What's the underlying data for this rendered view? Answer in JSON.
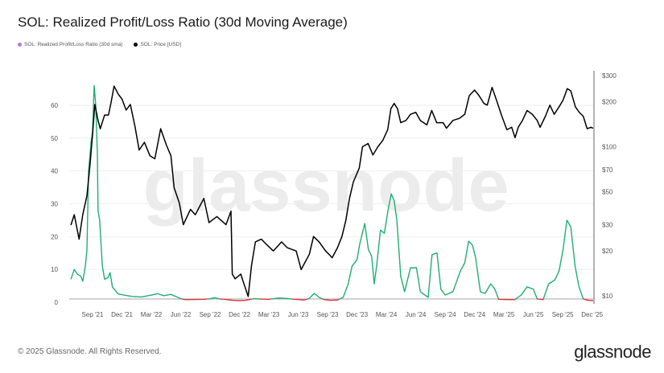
{
  "title": "SOL: Realized Profit/Loss Ratio (30d Moving Average)",
  "legend": [
    {
      "label": "SOL: Realized Profit/Loss Ratio (30d sma)",
      "color": "#a87fd6"
    },
    {
      "label": "SOL: Price [USD]",
      "color": "#000000"
    }
  ],
  "watermark": "glassnode",
  "footer": {
    "copyright": "© 2025 Glassnode. All Rights Reserved.",
    "logo": "glassnode"
  },
  "chart_data": {
    "type": "line",
    "title": "SOL: Realized Profit/Loss Ratio (30d Moving Average)",
    "grid": true,
    "legend_position": "top-left",
    "x_ticks": [
      "Sep '21",
      "Dec '21",
      "Mar '22",
      "Jun '22",
      "Sep '22",
      "Dec '22",
      "Mar '23",
      "Jun '23",
      "Sep '23",
      "Dec '23",
      "Mar '24",
      "Jun '24",
      "Sep '24",
      "Dec '24",
      "Mar '25",
      "Jun '25",
      "Sep '25",
      "Dec '25"
    ],
    "x_range": [
      "2021-06-18",
      "2025-12-07"
    ],
    "y_left": {
      "ticks": [
        0,
        10,
        20,
        30,
        40,
        50,
        60
      ],
      "range": [
        0,
        69
      ],
      "scale": "linear"
    },
    "y_right": {
      "ticks": [
        "$10",
        "$20",
        "$30",
        "$50",
        "$70",
        "$100",
        "$200",
        "$300"
      ],
      "tick_values": [
        10,
        20,
        30,
        50,
        70,
        100,
        200,
        300
      ],
      "range": [
        9.5,
        300
      ],
      "scale": "log"
    },
    "colors": {
      "ratio_above_1": "#1fae74",
      "ratio_below_1": "#d9343a",
      "price": "#000000",
      "reference_line": "#999999"
    },
    "reference_line_value": 1,
    "series": [
      {
        "name": "SOL: Realized Profit/Loss Ratio (30d sma)",
        "axis": "left",
        "points": [
          [
            "2021-06-25",
            7
          ],
          [
            "2021-07-05",
            10
          ],
          [
            "2021-07-15",
            8.5
          ],
          [
            "2021-07-25",
            8
          ],
          [
            "2021-08-01",
            6.4
          ],
          [
            "2021-08-09",
            11
          ],
          [
            "2021-08-14",
            16
          ],
          [
            "2021-08-19",
            40
          ],
          [
            "2021-08-27",
            49
          ],
          [
            "2021-09-01",
            52
          ],
          [
            "2021-09-06",
            66
          ],
          [
            "2021-09-11",
            60
          ],
          [
            "2021-09-16",
            45
          ],
          [
            "2021-09-18",
            28
          ],
          [
            "2021-09-23",
            25
          ],
          [
            "2021-10-01",
            11
          ],
          [
            "2021-10-08",
            7
          ],
          [
            "2021-10-18",
            7.5
          ],
          [
            "2021-10-25",
            9
          ],
          [
            "2021-11-02",
            4.6
          ],
          [
            "2021-11-20",
            2.5
          ],
          [
            "2021-12-01",
            2.3
          ],
          [
            "2022-01-01",
            1.8
          ],
          [
            "2022-02-01",
            1.6
          ],
          [
            "2022-03-01",
            2.2
          ],
          [
            "2022-03-20",
            2.6
          ],
          [
            "2022-04-10",
            2.0
          ],
          [
            "2022-05-01",
            2.4
          ],
          [
            "2022-05-20",
            1.6
          ],
          [
            "2022-06-01",
            1.1
          ],
          [
            "2022-06-15",
            0.8
          ],
          [
            "2022-07-15",
            0.85
          ],
          [
            "2022-08-15",
            0.9
          ],
          [
            "2022-09-01",
            1.1
          ],
          [
            "2022-09-15",
            1.4
          ],
          [
            "2022-10-01",
            1.0
          ],
          [
            "2022-10-15",
            0.9
          ],
          [
            "2022-11-10",
            0.6
          ],
          [
            "2022-12-01",
            0.5
          ],
          [
            "2022-12-20",
            0.6
          ],
          [
            "2023-01-15",
            1.1
          ],
          [
            "2023-02-01",
            1.0
          ],
          [
            "2023-03-01",
            0.9
          ],
          [
            "2023-04-01",
            1.3
          ],
          [
            "2023-05-01",
            1.1
          ],
          [
            "2023-06-01",
            0.8
          ],
          [
            "2023-06-20",
            0.7
          ],
          [
            "2023-07-05",
            1.2
          ],
          [
            "2023-07-20",
            2.7
          ],
          [
            "2023-08-05",
            1.5
          ],
          [
            "2023-08-20",
            0.8
          ],
          [
            "2023-09-10",
            0.6
          ],
          [
            "2023-10-01",
            0.7
          ],
          [
            "2023-10-19",
            1.5
          ],
          [
            "2023-11-04",
            5.6
          ],
          [
            "2023-11-16",
            11
          ],
          [
            "2023-12-01",
            13
          ],
          [
            "2023-12-10",
            18
          ],
          [
            "2023-12-25",
            24
          ],
          [
            "2024-01-06",
            16
          ],
          [
            "2024-01-16",
            14
          ],
          [
            "2024-01-24",
            5.6
          ],
          [
            "2024-02-01",
            11
          ],
          [
            "2024-02-13",
            22
          ],
          [
            "2024-02-25",
            21
          ],
          [
            "2024-03-06",
            28
          ],
          [
            "2024-03-16",
            33
          ],
          [
            "2024-03-25",
            31
          ],
          [
            "2024-04-03",
            25
          ],
          [
            "2024-04-15",
            8
          ],
          [
            "2024-04-27",
            3.2
          ],
          [
            "2024-05-15",
            10.5
          ],
          [
            "2024-06-03",
            10.5
          ],
          [
            "2024-06-15",
            3.2
          ],
          [
            "2024-07-09",
            1.5
          ],
          [
            "2024-07-21",
            14.5
          ],
          [
            "2024-08-06",
            15
          ],
          [
            "2024-08-18",
            4
          ],
          [
            "2024-09-01",
            2.2
          ],
          [
            "2024-09-25",
            3.2
          ],
          [
            "2024-10-18",
            9.6
          ],
          [
            "2024-11-01",
            12
          ],
          [
            "2024-11-13",
            18.6
          ],
          [
            "2024-11-25",
            17.4
          ],
          [
            "2024-12-04",
            13.7
          ],
          [
            "2024-12-19",
            3.2
          ],
          [
            "2025-01-03",
            2.7
          ],
          [
            "2025-01-21",
            5.6
          ],
          [
            "2025-02-03",
            4
          ],
          [
            "2025-02-15",
            0.9
          ],
          [
            "2025-03-10",
            0.8
          ],
          [
            "2025-04-04",
            0.8
          ],
          [
            "2025-04-24",
            2.2
          ],
          [
            "2025-05-12",
            4.7
          ],
          [
            "2025-06-01",
            4
          ],
          [
            "2025-06-13",
            1.0
          ],
          [
            "2025-07-01",
            0.8
          ],
          [
            "2025-07-18",
            5.6
          ],
          [
            "2025-08-07",
            6.8
          ],
          [
            "2025-08-20",
            9.5
          ],
          [
            "2025-09-02",
            16
          ],
          [
            "2025-09-14",
            25
          ],
          [
            "2025-09-26",
            23
          ],
          [
            "2025-10-09",
            11
          ],
          [
            "2025-10-21",
            4.7
          ],
          [
            "2025-11-04",
            1.0
          ],
          [
            "2025-11-19",
            0.6
          ],
          [
            "2025-12-04",
            0.5
          ]
        ]
      },
      {
        "name": "SOL: Price [USD]",
        "axis": "right",
        "points": [
          [
            "2021-06-25",
            29.8
          ],
          [
            "2021-07-05",
            35
          ],
          [
            "2021-07-20",
            24
          ],
          [
            "2021-08-01",
            35
          ],
          [
            "2021-08-14",
            47
          ],
          [
            "2021-08-24",
            78
          ],
          [
            "2021-09-01",
            121
          ],
          [
            "2021-09-08",
            192
          ],
          [
            "2021-09-18",
            150
          ],
          [
            "2021-09-25",
            132
          ],
          [
            "2021-10-08",
            163
          ],
          [
            "2021-10-20",
            163
          ],
          [
            "2021-10-28",
            198
          ],
          [
            "2021-11-07",
            255
          ],
          [
            "2021-11-20",
            225
          ],
          [
            "2021-12-01",
            209
          ],
          [
            "2021-12-14",
            176
          ],
          [
            "2021-12-27",
            192
          ],
          [
            "2022-01-11",
            137
          ],
          [
            "2022-01-24",
            95
          ],
          [
            "2022-02-10",
            107
          ],
          [
            "2022-02-27",
            87
          ],
          [
            "2022-03-12",
            83
          ],
          [
            "2022-03-30",
            132
          ],
          [
            "2022-04-17",
            103
          ],
          [
            "2022-05-01",
            87
          ],
          [
            "2022-05-11",
            53
          ],
          [
            "2022-05-27",
            42
          ],
          [
            "2022-06-09",
            30
          ],
          [
            "2022-07-01",
            38
          ],
          [
            "2022-07-16",
            35
          ],
          [
            "2022-08-12",
            45
          ],
          [
            "2022-08-28",
            31
          ],
          [
            "2022-09-22",
            34
          ],
          [
            "2022-10-20",
            30
          ],
          [
            "2022-11-05",
            37
          ],
          [
            "2022-11-09",
            14
          ],
          [
            "2022-11-18",
            13
          ],
          [
            "2022-12-05",
            14
          ],
          [
            "2022-12-15",
            12
          ],
          [
            "2022-12-28",
            9.9
          ],
          [
            "2023-01-08",
            16
          ],
          [
            "2023-01-20",
            23
          ],
          [
            "2023-02-08",
            24
          ],
          [
            "2023-02-25",
            22
          ],
          [
            "2023-03-15",
            20
          ],
          [
            "2023-04-10",
            23
          ],
          [
            "2023-04-28",
            21
          ],
          [
            "2023-05-25",
            20
          ],
          [
            "2023-06-10",
            15
          ],
          [
            "2023-07-05",
            19
          ],
          [
            "2023-07-18",
            25
          ],
          [
            "2023-08-05",
            23
          ],
          [
            "2023-08-25",
            20
          ],
          [
            "2023-09-05",
            19
          ],
          [
            "2023-09-15",
            18
          ],
          [
            "2023-10-01",
            21
          ],
          [
            "2023-10-15",
            25
          ],
          [
            "2023-10-27",
            32
          ],
          [
            "2023-11-08",
            45
          ],
          [
            "2023-11-20",
            58
          ],
          [
            "2023-12-08",
            72
          ],
          [
            "2023-12-18",
            100
          ],
          [
            "2024-01-05",
            105
          ],
          [
            "2024-01-20",
            88
          ],
          [
            "2024-02-05",
            100
          ],
          [
            "2024-02-20",
            110
          ],
          [
            "2024-03-05",
            130
          ],
          [
            "2024-03-15",
            180
          ],
          [
            "2024-03-25",
            195
          ],
          [
            "2024-04-05",
            180
          ],
          [
            "2024-04-15",
            145
          ],
          [
            "2024-05-01",
            150
          ],
          [
            "2024-05-15",
            165
          ],
          [
            "2024-06-01",
            170
          ],
          [
            "2024-06-15",
            150
          ],
          [
            "2024-07-05",
            140
          ],
          [
            "2024-07-20",
            175
          ],
          [
            "2024-08-05",
            145
          ],
          [
            "2024-08-25",
            145
          ],
          [
            "2024-09-05",
            133
          ],
          [
            "2024-09-25",
            150
          ],
          [
            "2024-10-15",
            155
          ],
          [
            "2024-11-01",
            165
          ],
          [
            "2024-11-15",
            220
          ],
          [
            "2024-12-01",
            240
          ],
          [
            "2024-12-15",
            220
          ],
          [
            "2024-12-30",
            195
          ],
          [
            "2025-01-10",
            190
          ],
          [
            "2025-01-25",
            250
          ],
          [
            "2025-02-10",
            200
          ],
          [
            "2025-02-25",
            160
          ],
          [
            "2025-03-10",
            130
          ],
          [
            "2025-03-25",
            135
          ],
          [
            "2025-04-05",
            115
          ],
          [
            "2025-04-15",
            135
          ],
          [
            "2025-04-28",
            150
          ],
          [
            "2025-05-12",
            175
          ],
          [
            "2025-05-28",
            165
          ],
          [
            "2025-06-13",
            150
          ],
          [
            "2025-06-22",
            135
          ],
          [
            "2025-07-08",
            160
          ],
          [
            "2025-07-22",
            190
          ],
          [
            "2025-08-05",
            165
          ],
          [
            "2025-08-20",
            185
          ],
          [
            "2025-09-02",
            205
          ],
          [
            "2025-09-15",
            245
          ],
          [
            "2025-09-26",
            237
          ],
          [
            "2025-10-10",
            185
          ],
          [
            "2025-10-22",
            170
          ],
          [
            "2025-11-04",
            160
          ],
          [
            "2025-11-16",
            132
          ],
          [
            "2025-11-28",
            135
          ],
          [
            "2025-12-04",
            133
          ]
        ]
      }
    ]
  }
}
